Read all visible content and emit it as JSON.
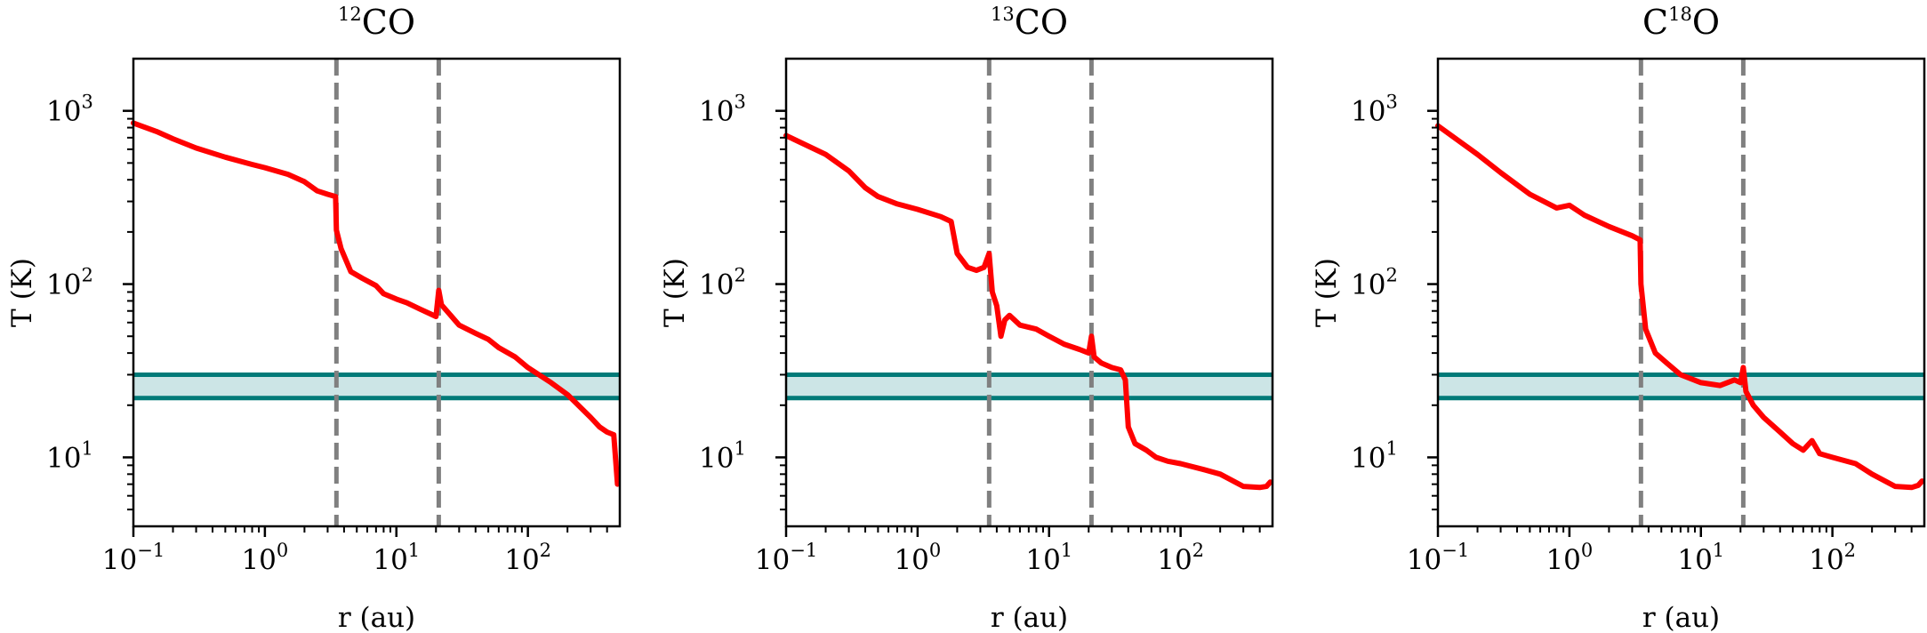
{
  "chart_data": [
    {
      "type": "line",
      "title": {
        "isotope": "12",
        "species": "CO"
      },
      "xlabel": "r (au)",
      "ylabel": "T (K)",
      "xscale": "log",
      "yscale": "log",
      "xlim": [
        0.1,
        500
      ],
      "ylim": [
        4,
        2000
      ],
      "xticks": [
        0.1,
        1,
        10,
        100
      ],
      "xtick_labels": [
        {
          "base": "10",
          "exp": "−1"
        },
        {
          "base": "10",
          "exp": "0"
        },
        {
          "base": "10",
          "exp": "1"
        },
        {
          "base": "10",
          "exp": "2"
        }
      ],
      "yticks": [
        10,
        100,
        1000
      ],
      "ytick_labels": [
        {
          "base": "10",
          "exp": "1"
        },
        {
          "base": "10",
          "exp": "2"
        },
        {
          "base": "10",
          "exp": "3"
        }
      ],
      "vlines": [
        3.5,
        21
      ],
      "hband": [
        22,
        30
      ],
      "series": [
        {
          "color": "#ff0000",
          "points": [
            [
              0.1,
              850
            ],
            [
              0.15,
              760
            ],
            [
              0.2,
              690
            ],
            [
              0.3,
              610
            ],
            [
              0.5,
              540
            ],
            [
              0.8,
              490
            ],
            [
              1.0,
              470
            ],
            [
              1.5,
              430
            ],
            [
              2.0,
              390
            ],
            [
              2.5,
              345
            ],
            [
              3.0,
              330
            ],
            [
              3.45,
              320
            ],
            [
              3.5,
              205
            ],
            [
              3.8,
              160
            ],
            [
              4.5,
              118
            ],
            [
              5.5,
              108
            ],
            [
              7,
              98
            ],
            [
              8,
              88
            ],
            [
              10,
              82
            ],
            [
              12,
              78
            ],
            [
              15,
              72
            ],
            [
              20,
              65
            ],
            [
              21,
              92
            ],
            [
              22,
              76
            ],
            [
              25,
              68
            ],
            [
              30,
              58
            ],
            [
              40,
              52
            ],
            [
              50,
              48
            ],
            [
              60,
              43
            ],
            [
              80,
              38
            ],
            [
              100,
              33
            ],
            [
              150,
              27
            ],
            [
              200,
              23
            ],
            [
              300,
              17
            ],
            [
              350,
              15
            ],
            [
              400,
              14
            ],
            [
              450,
              13.5
            ],
            [
              480,
              7
            ]
          ]
        }
      ]
    },
    {
      "type": "line",
      "title": {
        "isotope": "13",
        "species": "CO"
      },
      "xlabel": "r (au)",
      "ylabel": "T (K)",
      "xscale": "log",
      "yscale": "log",
      "xlim": [
        0.1,
        500
      ],
      "ylim": [
        4,
        2000
      ],
      "xticks": [
        0.1,
        1,
        10,
        100
      ],
      "xtick_labels": [
        {
          "base": "10",
          "exp": "−1"
        },
        {
          "base": "10",
          "exp": "0"
        },
        {
          "base": "10",
          "exp": "1"
        },
        {
          "base": "10",
          "exp": "2"
        }
      ],
      "yticks": [
        10,
        100,
        1000
      ],
      "ytick_labels": [
        {
          "base": "10",
          "exp": "1"
        },
        {
          "base": "10",
          "exp": "2"
        },
        {
          "base": "10",
          "exp": "3"
        }
      ],
      "vlines": [
        3.5,
        21
      ],
      "hband": [
        22,
        30
      ],
      "series": [
        {
          "color": "#ff0000",
          "points": [
            [
              0.1,
              720
            ],
            [
              0.2,
              560
            ],
            [
              0.3,
              450
            ],
            [
              0.4,
              360
            ],
            [
              0.5,
              320
            ],
            [
              0.7,
              290
            ],
            [
              1.0,
              270
            ],
            [
              1.5,
              245
            ],
            [
              1.8,
              230
            ],
            [
              2.0,
              150
            ],
            [
              2.4,
              125
            ],
            [
              2.8,
              120
            ],
            [
              3.2,
              125
            ],
            [
              3.5,
              150
            ],
            [
              3.7,
              90
            ],
            [
              4.0,
              75
            ],
            [
              4.3,
              50
            ],
            [
              4.6,
              62
            ],
            [
              5.0,
              66
            ],
            [
              6,
              58
            ],
            [
              8,
              55
            ],
            [
              10,
              50
            ],
            [
              13,
              45
            ],
            [
              17,
              42
            ],
            [
              20,
              40
            ],
            [
              21,
              50
            ],
            [
              22,
              38
            ],
            [
              25,
              35
            ],
            [
              30,
              33
            ],
            [
              35,
              32
            ],
            [
              38,
              28
            ],
            [
              40,
              15
            ],
            [
              45,
              12
            ],
            [
              55,
              11
            ],
            [
              65,
              10
            ],
            [
              80,
              9.5
            ],
            [
              100,
              9.2
            ],
            [
              150,
              8.5
            ],
            [
              200,
              8
            ],
            [
              300,
              6.8
            ],
            [
              400,
              6.7
            ],
            [
              450,
              6.8
            ],
            [
              480,
              7.2
            ]
          ]
        }
      ]
    },
    {
      "type": "line",
      "title": {
        "isotope": "18",
        "species": "C",
        "species_after": "O"
      },
      "xlabel": "r (au)",
      "ylabel": "T (K)",
      "xscale": "log",
      "yscale": "log",
      "xlim": [
        0.1,
        500
      ],
      "ylim": [
        4,
        2000
      ],
      "xticks": [
        0.1,
        1,
        10,
        100
      ],
      "xtick_labels": [
        {
          "base": "10",
          "exp": "−1"
        },
        {
          "base": "10",
          "exp": "0"
        },
        {
          "base": "10",
          "exp": "1"
        },
        {
          "base": "10",
          "exp": "2"
        }
      ],
      "yticks": [
        10,
        100,
        1000
      ],
      "ytick_labels": [
        {
          "base": "10",
          "exp": "1"
        },
        {
          "base": "10",
          "exp": "2"
        },
        {
          "base": "10",
          "exp": "3"
        }
      ],
      "vlines": [
        3.5,
        21
      ],
      "hband": [
        22,
        30
      ],
      "series": [
        {
          "color": "#ff0000",
          "points": [
            [
              0.1,
              820
            ],
            [
              0.2,
              560
            ],
            [
              0.3,
              440
            ],
            [
              0.5,
              330
            ],
            [
              0.8,
              275
            ],
            [
              1.0,
              285
            ],
            [
              1.3,
              250
            ],
            [
              2.0,
              215
            ],
            [
              3.0,
              190
            ],
            [
              3.45,
              180
            ],
            [
              3.5,
              100
            ],
            [
              3.8,
              55
            ],
            [
              4.5,
              40
            ],
            [
              5.5,
              35
            ],
            [
              7,
              30
            ],
            [
              10,
              27
            ],
            [
              14,
              26
            ],
            [
              18,
              28
            ],
            [
              20,
              27
            ],
            [
              21,
              33
            ],
            [
              22,
              24
            ],
            [
              25,
              20
            ],
            [
              30,
              17
            ],
            [
              40,
              14
            ],
            [
              50,
              12
            ],
            [
              60,
              11
            ],
            [
              70,
              12.5
            ],
            [
              80,
              10.5
            ],
            [
              100,
              10
            ],
            [
              150,
              9.2
            ],
            [
              200,
              8
            ],
            [
              300,
              6.8
            ],
            [
              400,
              6.7
            ],
            [
              450,
              6.9
            ],
            [
              480,
              7.3
            ]
          ]
        }
      ]
    }
  ]
}
